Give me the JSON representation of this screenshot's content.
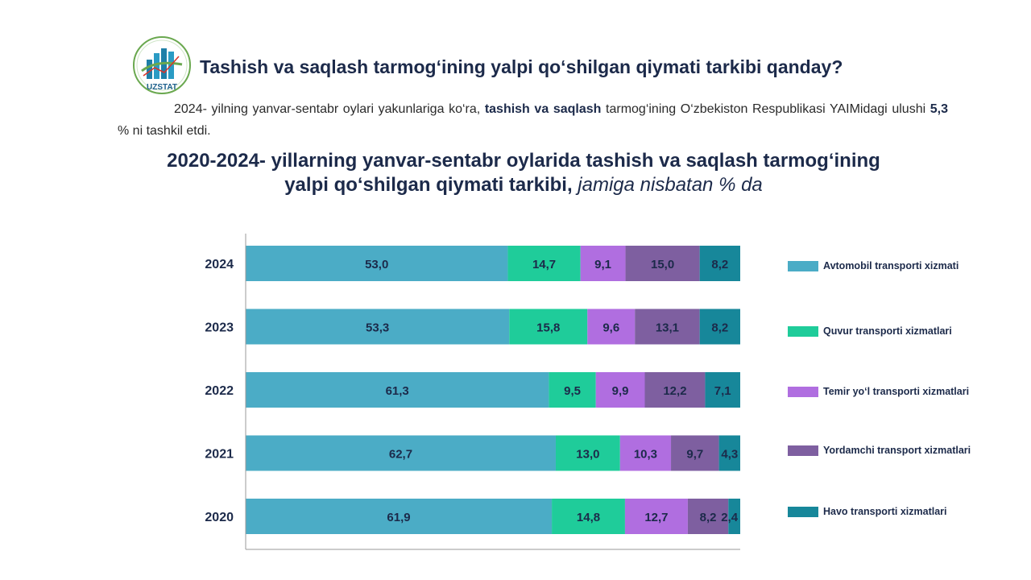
{
  "logo": {
    "text": "UZSTAT"
  },
  "title": "Tashish va saqlash tarmog‘ining yalpi qo‘shilgan qiymati tarkibi qanday?",
  "intro": {
    "p1": "2024- yilning yanvar-sentabr oylari yakunlariga ko‘ra, ",
    "b1": "tashish va saqlash",
    "p2": " tarmog‘ining O‘zbekiston Respublikasi YAIMidagi  ulushi ",
    "b2": "5,3",
    "p3": " % ni tashkil etdi."
  },
  "chart_title": {
    "line1": "2020-2024- yillarning yanvar-sentabr oylarida tashish va saqlash tarmog‘ining",
    "line2_bold": "yalpi qo‘shilgan qiymati tarkibi,",
    "line2_italic": " jamiga nisbatan % da"
  },
  "chart_data": {
    "type": "bar",
    "orientation": "horizontal",
    "stacked": true,
    "categories": [
      "2024",
      "2023",
      "2022",
      "2021",
      "2020"
    ],
    "series": [
      {
        "name": "Avtomobil  transporti xizmati",
        "values": [
          53.0,
          53.3,
          61.3,
          62.7,
          61.9
        ],
        "labels": [
          "53,0",
          "53,3",
          "61,3",
          "62,7",
          "61,9"
        ],
        "color": "#4bacc6"
      },
      {
        "name": "Quvur transporti xizmatlari",
        "values": [
          14.7,
          15.8,
          9.5,
          13.0,
          14.8
        ],
        "labels": [
          "14,7",
          "15,8",
          "9,5",
          "13,0",
          "14,8"
        ],
        "color": "#1fcc9a"
      },
      {
        "name": "Temir yo‘l transporti xizmatlari",
        "values": [
          9.1,
          9.6,
          9.9,
          10.3,
          12.7
        ],
        "labels": [
          "9,1",
          "9,6",
          "9,9",
          "10,3",
          "12,7"
        ],
        "color": "#b06ee0"
      },
      {
        "name": "Yordamchi transport xizmatlari",
        "values": [
          15.0,
          13.1,
          12.2,
          9.7,
          8.2
        ],
        "labels": [
          "15,0",
          "13,1",
          "12,2",
          "9,7",
          "8,2"
        ],
        "color": "#7e5fa0"
      },
      {
        "name": "Havo transporti xizmatlari",
        "values": [
          8.2,
          8.2,
          7.1,
          4.3,
          2.4
        ],
        "labels": [
          "8,2",
          "8,2",
          "7,1",
          "4,3",
          "2,4"
        ],
        "color": "#17879a"
      }
    ],
    "xlim": [
      0,
      100
    ],
    "grid": false,
    "legend": "right"
  }
}
